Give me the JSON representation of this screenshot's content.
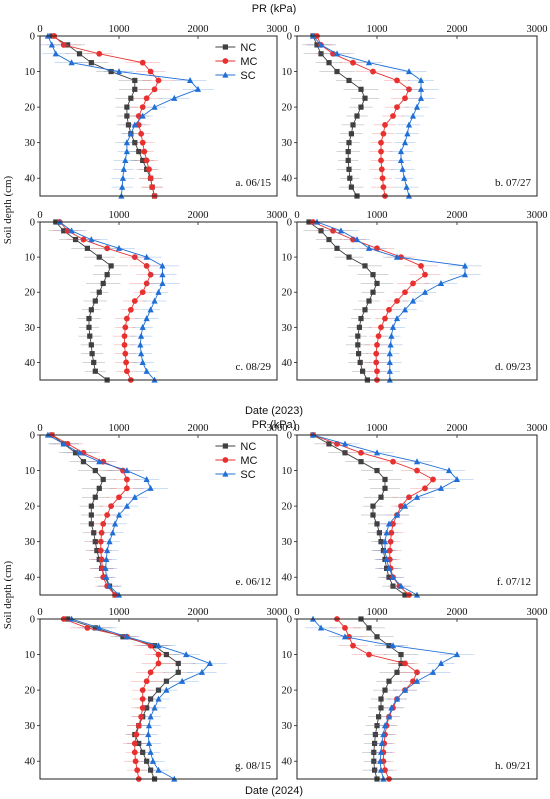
{
  "figure": {
    "ylabel": "Soil depth (cm)",
    "top_xlabel": "PR (kPa)",
    "top_date_label": "Date (2023)",
    "bottom_xlabel": "PR (kPa)",
    "bottom_date_label": "Date (2024)"
  },
  "colors": {
    "NC": "#404040",
    "MC": "#e8312f",
    "SC": "#1f6fd6"
  },
  "chart_data": [
    {
      "type": "line",
      "panel_label": "a. 06/15",
      "xlim": [
        0,
        3000
      ],
      "ylim": [
        0,
        45
      ],
      "y_inverted": true,
      "xticks": [
        0,
        1000,
        2000,
        3000
      ],
      "yticks": [
        0,
        10,
        20,
        30,
        40
      ],
      "legend": [
        "NC",
        "MC",
        "SC"
      ],
      "legend_position": "top-right",
      "depth": [
        0,
        2.5,
        5,
        7.5,
        10,
        12.5,
        15,
        17.5,
        20,
        22.5,
        25,
        27.5,
        30,
        32.5,
        35,
        37.5,
        40,
        42.5,
        45
      ],
      "series": [
        {
          "name": "NC",
          "marker": "square",
          "values": [
            150,
            350,
            500,
            650,
            900,
            1200,
            1200,
            1150,
            1100,
            1100,
            1120,
            1150,
            1200,
            1250,
            1300,
            1350,
            1400,
            1420,
            1450
          ]
        },
        {
          "name": "MC",
          "marker": "circle",
          "values": [
            180,
            300,
            750,
            1300,
            1400,
            1500,
            1450,
            1350,
            1300,
            1250,
            1250,
            1280,
            1300,
            1320,
            1350,
            1380,
            1400,
            1420,
            1450
          ]
        },
        {
          "name": "SC",
          "marker": "triangle",
          "values": [
            100,
            150,
            200,
            400,
            1000,
            1900,
            2000,
            1700,
            1450,
            1300,
            1200,
            1150,
            1100,
            1100,
            1080,
            1060,
            1050,
            1040,
            1030
          ]
        }
      ]
    },
    {
      "type": "line",
      "panel_label": "b. 07/27",
      "xlim": [
        0,
        3000
      ],
      "ylim": [
        0,
        45
      ],
      "y_inverted": true,
      "xticks": [
        0,
        1000,
        2000,
        3000
      ],
      "yticks": [
        0,
        10,
        20,
        30,
        40
      ],
      "depth": [
        0,
        2.5,
        5,
        7.5,
        10,
        12.5,
        15,
        17.5,
        20,
        22.5,
        25,
        27.5,
        30,
        32.5,
        35,
        37.5,
        40,
        42.5,
        45
      ],
      "series": [
        {
          "name": "NC",
          "marker": "square",
          "values": [
            200,
            250,
            300,
            400,
            500,
            650,
            800,
            850,
            800,
            750,
            700,
            680,
            650,
            640,
            640,
            650,
            660,
            680,
            750
          ]
        },
        {
          "name": "MC",
          "marker": "circle",
          "values": [
            250,
            300,
            450,
            700,
            950,
            1250,
            1400,
            1350,
            1250,
            1200,
            1100,
            1080,
            1050,
            1050,
            1050,
            1060,
            1070,
            1080,
            1100
          ]
        },
        {
          "name": "SC",
          "marker": "triangle",
          "values": [
            200,
            300,
            500,
            900,
            1400,
            1550,
            1550,
            1550,
            1500,
            1450,
            1400,
            1380,
            1350,
            1300,
            1300,
            1320,
            1340,
            1370,
            1400
          ]
        }
      ]
    },
    {
      "type": "line",
      "panel_label": "c. 08/29",
      "xlim": [
        0,
        3000
      ],
      "ylim": [
        0,
        45
      ],
      "y_inverted": true,
      "xticks": [
        0,
        1000,
        2000,
        3000
      ],
      "yticks": [
        0,
        10,
        20,
        30,
        40
      ],
      "depth": [
        0,
        2.5,
        5,
        7.5,
        10,
        12.5,
        15,
        17.5,
        20,
        22.5,
        25,
        27.5,
        30,
        32.5,
        35,
        37.5,
        40,
        42.5,
        45
      ],
      "series": [
        {
          "name": "NC",
          "marker": "square",
          "values": [
            200,
            300,
            450,
            600,
            750,
            900,
            850,
            800,
            750,
            700,
            650,
            620,
            620,
            630,
            650,
            660,
            680,
            700,
            850
          ]
        },
        {
          "name": "MC",
          "marker": "circle",
          "values": [
            250,
            350,
            550,
            850,
            1200,
            1350,
            1400,
            1350,
            1300,
            1200,
            1150,
            1100,
            1080,
            1070,
            1070,
            1080,
            1090,
            1100,
            1150
          ]
        },
        {
          "name": "SC",
          "marker": "triangle",
          "values": [
            250,
            400,
            650,
            1000,
            1350,
            1550,
            1550,
            1550,
            1500,
            1450,
            1400,
            1350,
            1300,
            1280,
            1270,
            1280,
            1300,
            1350,
            1450
          ]
        }
      ]
    },
    {
      "type": "line",
      "panel_label": "d. 09/23",
      "xlim": [
        0,
        3000
      ],
      "ylim": [
        0,
        45
      ],
      "y_inverted": true,
      "xticks": [
        0,
        1000,
        2000,
        3000
      ],
      "yticks": [
        0,
        10,
        20,
        30,
        40
      ],
      "depth": [
        0,
        2.5,
        5,
        7.5,
        10,
        12.5,
        15,
        17.5,
        20,
        22.5,
        25,
        27.5,
        30,
        32.5,
        35,
        37.5,
        40,
        42.5,
        45
      ],
      "series": [
        {
          "name": "NC",
          "marker": "square",
          "values": [
            150,
            300,
            400,
            500,
            650,
            850,
            950,
            1000,
            950,
            900,
            850,
            800,
            780,
            760,
            760,
            770,
            790,
            820,
            880
          ]
        },
        {
          "name": "MC",
          "marker": "circle",
          "values": [
            200,
            450,
            700,
            1000,
            1300,
            1550,
            1600,
            1450,
            1350,
            1250,
            1150,
            1100,
            1050,
            1020,
            1000,
            990,
            990,
            1000,
            1000
          ]
        },
        {
          "name": "SC",
          "marker": "triangle",
          "values": [
            250,
            550,
            750,
            900,
            1250,
            2100,
            2100,
            1800,
            1600,
            1450,
            1350,
            1250,
            1200,
            1180,
            1170,
            1160,
            1160,
            1160,
            1160
          ]
        }
      ]
    },
    {
      "type": "line",
      "panel_label": "e. 06/12",
      "xlim": [
        0,
        3000
      ],
      "ylim": [
        0,
        45
      ],
      "y_inverted": true,
      "xticks": [
        0,
        1000,
        2000,
        3000
      ],
      "yticks": [
        0,
        10,
        20,
        30,
        40
      ],
      "legend": [
        "NC",
        "MC",
        "SC"
      ],
      "legend_position": "top-right",
      "depth": [
        0,
        2.5,
        5,
        7.5,
        10,
        12.5,
        15,
        17.5,
        20,
        22.5,
        25,
        27.5,
        30,
        32.5,
        35,
        37.5,
        40,
        42.5,
        45
      ],
      "series": [
        {
          "name": "NC",
          "marker": "square",
          "values": [
            150,
            300,
            450,
            550,
            700,
            800,
            750,
            700,
            650,
            650,
            650,
            680,
            700,
            720,
            750,
            780,
            820,
            880,
            950
          ]
        },
        {
          "name": "MC",
          "marker": "circle",
          "values": [
            150,
            350,
            550,
            800,
            1050,
            1100,
            1100,
            1000,
            900,
            850,
            800,
            780,
            770,
            770,
            780,
            790,
            800,
            850,
            950
          ]
        },
        {
          "name": "SC",
          "marker": "triangle",
          "values": [
            100,
            300,
            500,
            750,
            1100,
            1350,
            1400,
            1200,
            1100,
            1000,
            950,
            920,
            880,
            850,
            840,
            830,
            840,
            880,
            1000
          ]
        }
      ]
    },
    {
      "type": "line",
      "panel_label": "f. 07/12",
      "xlim": [
        0,
        3000
      ],
      "ylim": [
        0,
        45
      ],
      "y_inverted": true,
      "xticks": [
        0,
        1000,
        2000,
        3000
      ],
      "yticks": [
        0,
        10,
        20,
        30,
        40
      ],
      "depth": [
        0,
        2.5,
        5,
        7.5,
        10,
        12.5,
        15,
        17.5,
        20,
        22.5,
        25,
        27.5,
        30,
        32.5,
        35,
        37.5,
        40,
        42.5,
        45
      ],
      "series": [
        {
          "name": "NC",
          "marker": "square",
          "values": [
            200,
            400,
            600,
            800,
            1000,
            1100,
            1100,
            1050,
            950,
            950,
            1000,
            1030,
            1050,
            1080,
            1100,
            1120,
            1150,
            1200,
            1350
          ]
        },
        {
          "name": "MC",
          "marker": "circle",
          "values": [
            200,
            500,
            800,
            1200,
            1500,
            1700,
            1600,
            1400,
            1300,
            1250,
            1200,
            1180,
            1170,
            1160,
            1160,
            1170,
            1200,
            1280,
            1400
          ]
        },
        {
          "name": "SC",
          "marker": "triangle",
          "values": [
            200,
            600,
            1000,
            1500,
            1900,
            2000,
            1800,
            1500,
            1350,
            1250,
            1150,
            1120,
            1100,
            1100,
            1120,
            1150,
            1200,
            1300,
            1500
          ]
        }
      ]
    },
    {
      "type": "line",
      "panel_label": "g. 08/15",
      "xlim": [
        0,
        3000
      ],
      "ylim": [
        0,
        45
      ],
      "y_inverted": true,
      "xticks": [
        0,
        1000,
        2000,
        3000
      ],
      "yticks": [
        0,
        10,
        20,
        30,
        40
      ],
      "depth": [
        0,
        2.5,
        5,
        7.5,
        10,
        12.5,
        15,
        17.5,
        20,
        22.5,
        25,
        27.5,
        30,
        32.5,
        35,
        37.5,
        40,
        42.5,
        45
      ],
      "series": [
        {
          "name": "NC",
          "marker": "square",
          "values": [
            350,
            700,
            1050,
            1450,
            1600,
            1750,
            1750,
            1600,
            1500,
            1400,
            1350,
            1300,
            1250,
            1200,
            1250,
            1300,
            1350,
            1400,
            1450
          ]
        },
        {
          "name": "MC",
          "marker": "circle",
          "values": [
            300,
            600,
            1100,
            1400,
            1500,
            1500,
            1400,
            1350,
            1300,
            1300,
            1300,
            1280,
            1250,
            1220,
            1200,
            1200,
            1210,
            1230,
            1250
          ]
        },
        {
          "name": "SC",
          "marker": "triangle",
          "values": [
            400,
            750,
            1100,
            1500,
            1850,
            2150,
            2050,
            1800,
            1600,
            1500,
            1450,
            1400,
            1380,
            1370,
            1380,
            1400,
            1430,
            1500,
            1700
          ]
        }
      ]
    },
    {
      "type": "line",
      "panel_label": "h. 09/21",
      "xlim": [
        0,
        3000
      ],
      "ylim": [
        0,
        45
      ],
      "y_inverted": true,
      "xticks": [
        0,
        1000,
        2000,
        3000
      ],
      "yticks": [
        0,
        10,
        20,
        30,
        40
      ],
      "depth": [
        0,
        2.5,
        5,
        7.5,
        10,
        12.5,
        15,
        17.5,
        20,
        22.5,
        25,
        27.5,
        30,
        32.5,
        35,
        37.5,
        40,
        42.5,
        45
      ],
      "series": [
        {
          "name": "NC",
          "marker": "square",
          "values": [
            800,
            900,
            1000,
            1150,
            1300,
            1300,
            1250,
            1150,
            1100,
            1050,
            1050,
            1020,
            1000,
            980,
            970,
            960,
            960,
            970,
            1000
          ]
        },
        {
          "name": "MC",
          "marker": "circle",
          "values": [
            500,
            600,
            650,
            700,
            900,
            1350,
            1500,
            1450,
            1350,
            1250,
            1200,
            1150,
            1120,
            1100,
            1090,
            1080,
            1080,
            1100,
            1150
          ]
        },
        {
          "name": "SC",
          "marker": "triangle",
          "values": [
            200,
            300,
            600,
            1200,
            2000,
            1800,
            1700,
            1500,
            1350,
            1250,
            1180,
            1150,
            1100,
            1080,
            1060,
            1050,
            1040,
            1050,
            1080
          ]
        }
      ]
    }
  ]
}
